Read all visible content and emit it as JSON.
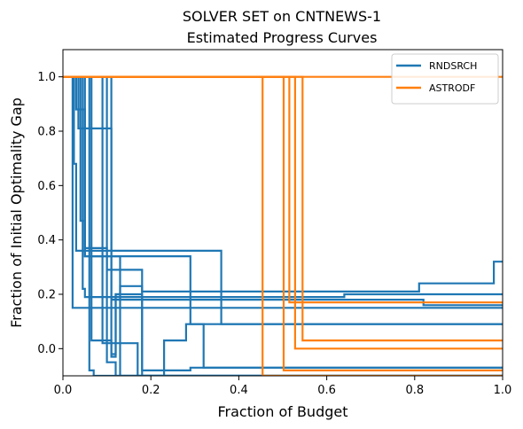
{
  "chart_data": {
    "type": "line",
    "title": "SOLVER SET on CNTNEWS-1",
    "subtitle": "Estimated Progress Curves",
    "xlabel": "Fraction of Budget",
    "ylabel": "Fraction of Initial Optimality Gap",
    "xlim": [
      0,
      1
    ],
    "ylim": [
      -0.1,
      1.1
    ],
    "xticks": [
      0.0,
      0.2,
      0.4,
      0.6,
      0.8,
      1.0
    ],
    "xtick_labels": [
      "0.0",
      "0.2",
      "0.4",
      "0.6",
      "0.8",
      "1.0"
    ],
    "yticks": [
      0.0,
      0.2,
      0.4,
      0.6,
      0.8,
      1.0
    ],
    "ytick_labels": [
      "0.0",
      "0.2",
      "0.4",
      "0.6",
      "0.8",
      "1.0"
    ],
    "grid": false,
    "legend_position": "top-right",
    "legend": [
      "RNDSRCH",
      "ASTRODF"
    ],
    "series": [
      {
        "name": "RNDSRCH",
        "color": "#1f77b4",
        "curves": [
          [
            [
              0,
              1.0
            ],
            [
              0.022,
              1.0
            ],
            [
              0.022,
              0.15
            ],
            [
              1.0,
              0.15
            ]
          ],
          [
            [
              0,
              1.0
            ],
            [
              0.025,
              1.0
            ],
            [
              0.025,
              0.68
            ],
            [
              0.03,
              0.68
            ],
            [
              0.03,
              0.36
            ],
            [
              0.36,
              0.36
            ],
            [
              0.36,
              0.09
            ],
            [
              1.0,
              0.09
            ]
          ],
          [
            [
              0,
              1.0
            ],
            [
              0.03,
              1.0
            ],
            [
              0.03,
              0.88
            ],
            [
              0.05,
              0.88
            ],
            [
              0.05,
              0.34
            ],
            [
              0.13,
              0.34
            ],
            [
              0.13,
              -0.1
            ],
            [
              1.0,
              -0.1
            ]
          ],
          [
            [
              0,
              1.0
            ],
            [
              0.035,
              1.0
            ],
            [
              0.035,
              0.81
            ],
            [
              0.11,
              0.81
            ],
            [
              0.11,
              0.18
            ],
            [
              0.82,
              0.18
            ],
            [
              0.82,
              0.16
            ],
            [
              1.0,
              0.16
            ]
          ],
          [
            [
              0,
              1.0
            ],
            [
              0.04,
              1.0
            ],
            [
              0.04,
              0.47
            ],
            [
              0.05,
              0.47
            ],
            [
              0.05,
              0.37
            ],
            [
              0.1,
              0.37
            ],
            [
              0.1,
              0.29
            ],
            [
              0.18,
              0.29
            ],
            [
              0.18,
              -0.08
            ],
            [
              0.29,
              -0.08
            ],
            [
              0.29,
              -0.07
            ],
            [
              1.0,
              -0.07
            ]
          ],
          [
            [
              0,
              1.0
            ],
            [
              0.045,
              1.0
            ],
            [
              0.045,
              0.22
            ],
            [
              0.05,
              0.22
            ],
            [
              0.05,
              0.19
            ],
            [
              0.64,
              0.19
            ],
            [
              0.64,
              0.2
            ],
            [
              1.0,
              0.2
            ]
          ],
          [
            [
              0,
              1.0
            ],
            [
              0.05,
              1.0
            ],
            [
              0.05,
              0.34
            ],
            [
              0.29,
              0.34
            ],
            [
              0.29,
              0.09
            ],
            [
              0.64,
              0.09
            ],
            [
              0.64,
              0.09
            ],
            [
              1.0,
              0.09
            ]
          ],
          [
            [
              0,
              1.0
            ],
            [
              0.06,
              1.0
            ],
            [
              0.06,
              -0.08
            ],
            [
              0.07,
              -0.08
            ],
            [
              0.07,
              -0.1
            ],
            [
              1.0,
              -0.1
            ]
          ],
          [
            [
              0,
              1.0
            ],
            [
              0.065,
              1.0
            ],
            [
              0.065,
              0.03
            ],
            [
              0.11,
              0.03
            ],
            [
              0.11,
              -0.03
            ],
            [
              0.12,
              -0.03
            ],
            [
              0.12,
              0.2
            ],
            [
              0.13,
              0.2
            ],
            [
              0.13,
              0.23
            ],
            [
              0.18,
              0.23
            ],
            [
              0.18,
              0.21
            ],
            [
              0.81,
              0.21
            ],
            [
              0.81,
              0.24
            ],
            [
              0.98,
              0.24
            ],
            [
              0.98,
              0.32
            ],
            [
              1.0,
              0.32
            ]
          ],
          [
            [
              0,
              1.0
            ],
            [
              0.09,
              1.0
            ],
            [
              0.09,
              0.02
            ],
            [
              0.17,
              0.02
            ],
            [
              0.17,
              -0.1
            ],
            [
              0.23,
              -0.1
            ],
            [
              0.23,
              0.03
            ],
            [
              0.28,
              0.03
            ],
            [
              0.28,
              0.09
            ],
            [
              0.32,
              0.09
            ],
            [
              0.32,
              -0.07
            ],
            [
              1.0,
              -0.07
            ]
          ],
          [
            [
              0,
              1.0
            ],
            [
              0.1,
              1.0
            ],
            [
              0.1,
              -0.05
            ],
            [
              0.12,
              -0.05
            ],
            [
              0.12,
              -0.1
            ],
            [
              1.0,
              -0.1
            ]
          ],
          [
            [
              0,
              1.0
            ],
            [
              0.11,
              1.0
            ],
            [
              0.11,
              -0.02
            ],
            [
              0.12,
              -0.02
            ],
            [
              0.12,
              0.2
            ],
            [
              0.18,
              0.2
            ],
            [
              0.18,
              -0.1
            ],
            [
              1.0,
              -0.1
            ]
          ]
        ]
      },
      {
        "name": "ASTRODF",
        "color": "#ff7f0e",
        "curves": [
          [
            [
              0,
              1.0
            ],
            [
              1.0,
              1.0
            ]
          ],
          [
            [
              0,
              1.0
            ],
            [
              0.454,
              1.0
            ],
            [
              0.454,
              -0.1
            ],
            [
              1.0,
              -0.1
            ]
          ],
          [
            [
              0,
              1.0
            ],
            [
              0.502,
              1.0
            ],
            [
              0.502,
              -0.08
            ],
            [
              1.0,
              -0.08
            ]
          ],
          [
            [
              0,
              1.0
            ],
            [
              0.515,
              1.0
            ],
            [
              0.515,
              0.17
            ],
            [
              1.0,
              0.17
            ]
          ],
          [
            [
              0,
              1.0
            ],
            [
              0.528,
              1.0
            ],
            [
              0.528,
              0.0
            ],
            [
              1.0,
              0.0
            ]
          ],
          [
            [
              0,
              1.0
            ],
            [
              0.545,
              1.0
            ],
            [
              0.545,
              0.03
            ],
            [
              1.0,
              0.03
            ]
          ]
        ]
      }
    ]
  }
}
